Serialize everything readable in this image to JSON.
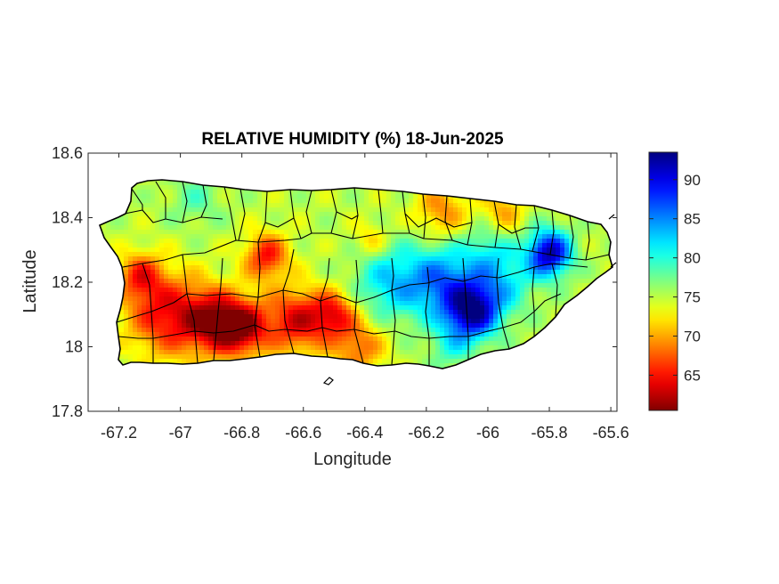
{
  "title": "RELATIVE HUMIDITY (%) 18-Jun-2025",
  "xlabel": "Longitude",
  "ylabel": "Latitude",
  "chart_data": {
    "type": "heatmap",
    "title": "RELATIVE HUMIDITY (%) 18-Jun-2025",
    "xlabel": "Longitude",
    "ylabel": "Latitude",
    "xlim": [
      -67.3,
      -65.58
    ],
    "ylim": [
      17.8,
      18.6
    ],
    "x_ticks": [
      -67.2,
      -67,
      -66.8,
      -66.6,
      -66.4,
      -66.2,
      -66,
      -65.8,
      -65.6
    ],
    "y_ticks": [
      17.8,
      18,
      18.2,
      18.4,
      18.6
    ],
    "x_tick_labels": [
      "-67.2",
      "-67",
      "-66.8",
      "-66.6",
      "-66.4",
      "-66.2",
      "-66",
      "-65.8",
      "-65.6"
    ],
    "y_tick_labels": [
      "17.8",
      "18",
      "18.2",
      "18.4",
      "18.6"
    ],
    "colorbar": {
      "range": [
        60.5,
        93.5
      ],
      "ticks": [
        65,
        70,
        75,
        80,
        85,
        90
      ],
      "tick_labels": [
        "65",
        "70",
        "75",
        "80",
        "85",
        "90"
      ],
      "colormap": "jet"
    },
    "base_humidity": 75,
    "humidity_features": [
      {
        "lon": -67.05,
        "lat": 18.1,
        "delta": -10,
        "spread": 0.09
      },
      {
        "lon": -66.9,
        "lat": 18.08,
        "delta": -11,
        "spread": 0.07
      },
      {
        "lon": -66.8,
        "lat": 18.06,
        "delta": -13,
        "spread": 0.06
      },
      {
        "lon": -66.62,
        "lat": 18.08,
        "delta": -11,
        "spread": 0.07
      },
      {
        "lon": -66.5,
        "lat": 18.1,
        "delta": -9,
        "spread": 0.05
      },
      {
        "lon": -66.72,
        "lat": 18.28,
        "delta": -10,
        "spread": 0.05
      },
      {
        "lon": -67.13,
        "lat": 18.22,
        "delta": -8,
        "spread": 0.05
      },
      {
        "lon": -66.42,
        "lat": 18.0,
        "delta": -7,
        "spread": 0.06
      },
      {
        "lon": -66.15,
        "lat": 18.42,
        "delta": -6,
        "spread": 0.06
      },
      {
        "lon": -65.95,
        "lat": 18.42,
        "delta": -5,
        "spread": 0.05
      },
      {
        "lon": -66.38,
        "lat": 18.33,
        "delta": -4,
        "spread": 0.04
      },
      {
        "lon": -66.32,
        "lat": 18.2,
        "delta": 7,
        "spread": 0.08
      },
      {
        "lon": -66.15,
        "lat": 18.2,
        "delta": 10,
        "spread": 0.08
      },
      {
        "lon": -66.05,
        "lat": 18.11,
        "delta": 17,
        "spread": 0.06
      },
      {
        "lon": -65.8,
        "lat": 18.29,
        "delta": 17,
        "spread": 0.05
      },
      {
        "lon": -65.95,
        "lat": 18.2,
        "delta": 6,
        "spread": 0.07
      },
      {
        "lon": -66.0,
        "lat": 18.3,
        "delta": 4,
        "spread": 0.06
      },
      {
        "lon": -66.12,
        "lat": 18.0,
        "delta": 4,
        "spread": 0.05
      },
      {
        "lon": -66.95,
        "lat": 18.46,
        "delta": 3,
        "spread": 0.06
      }
    ]
  }
}
